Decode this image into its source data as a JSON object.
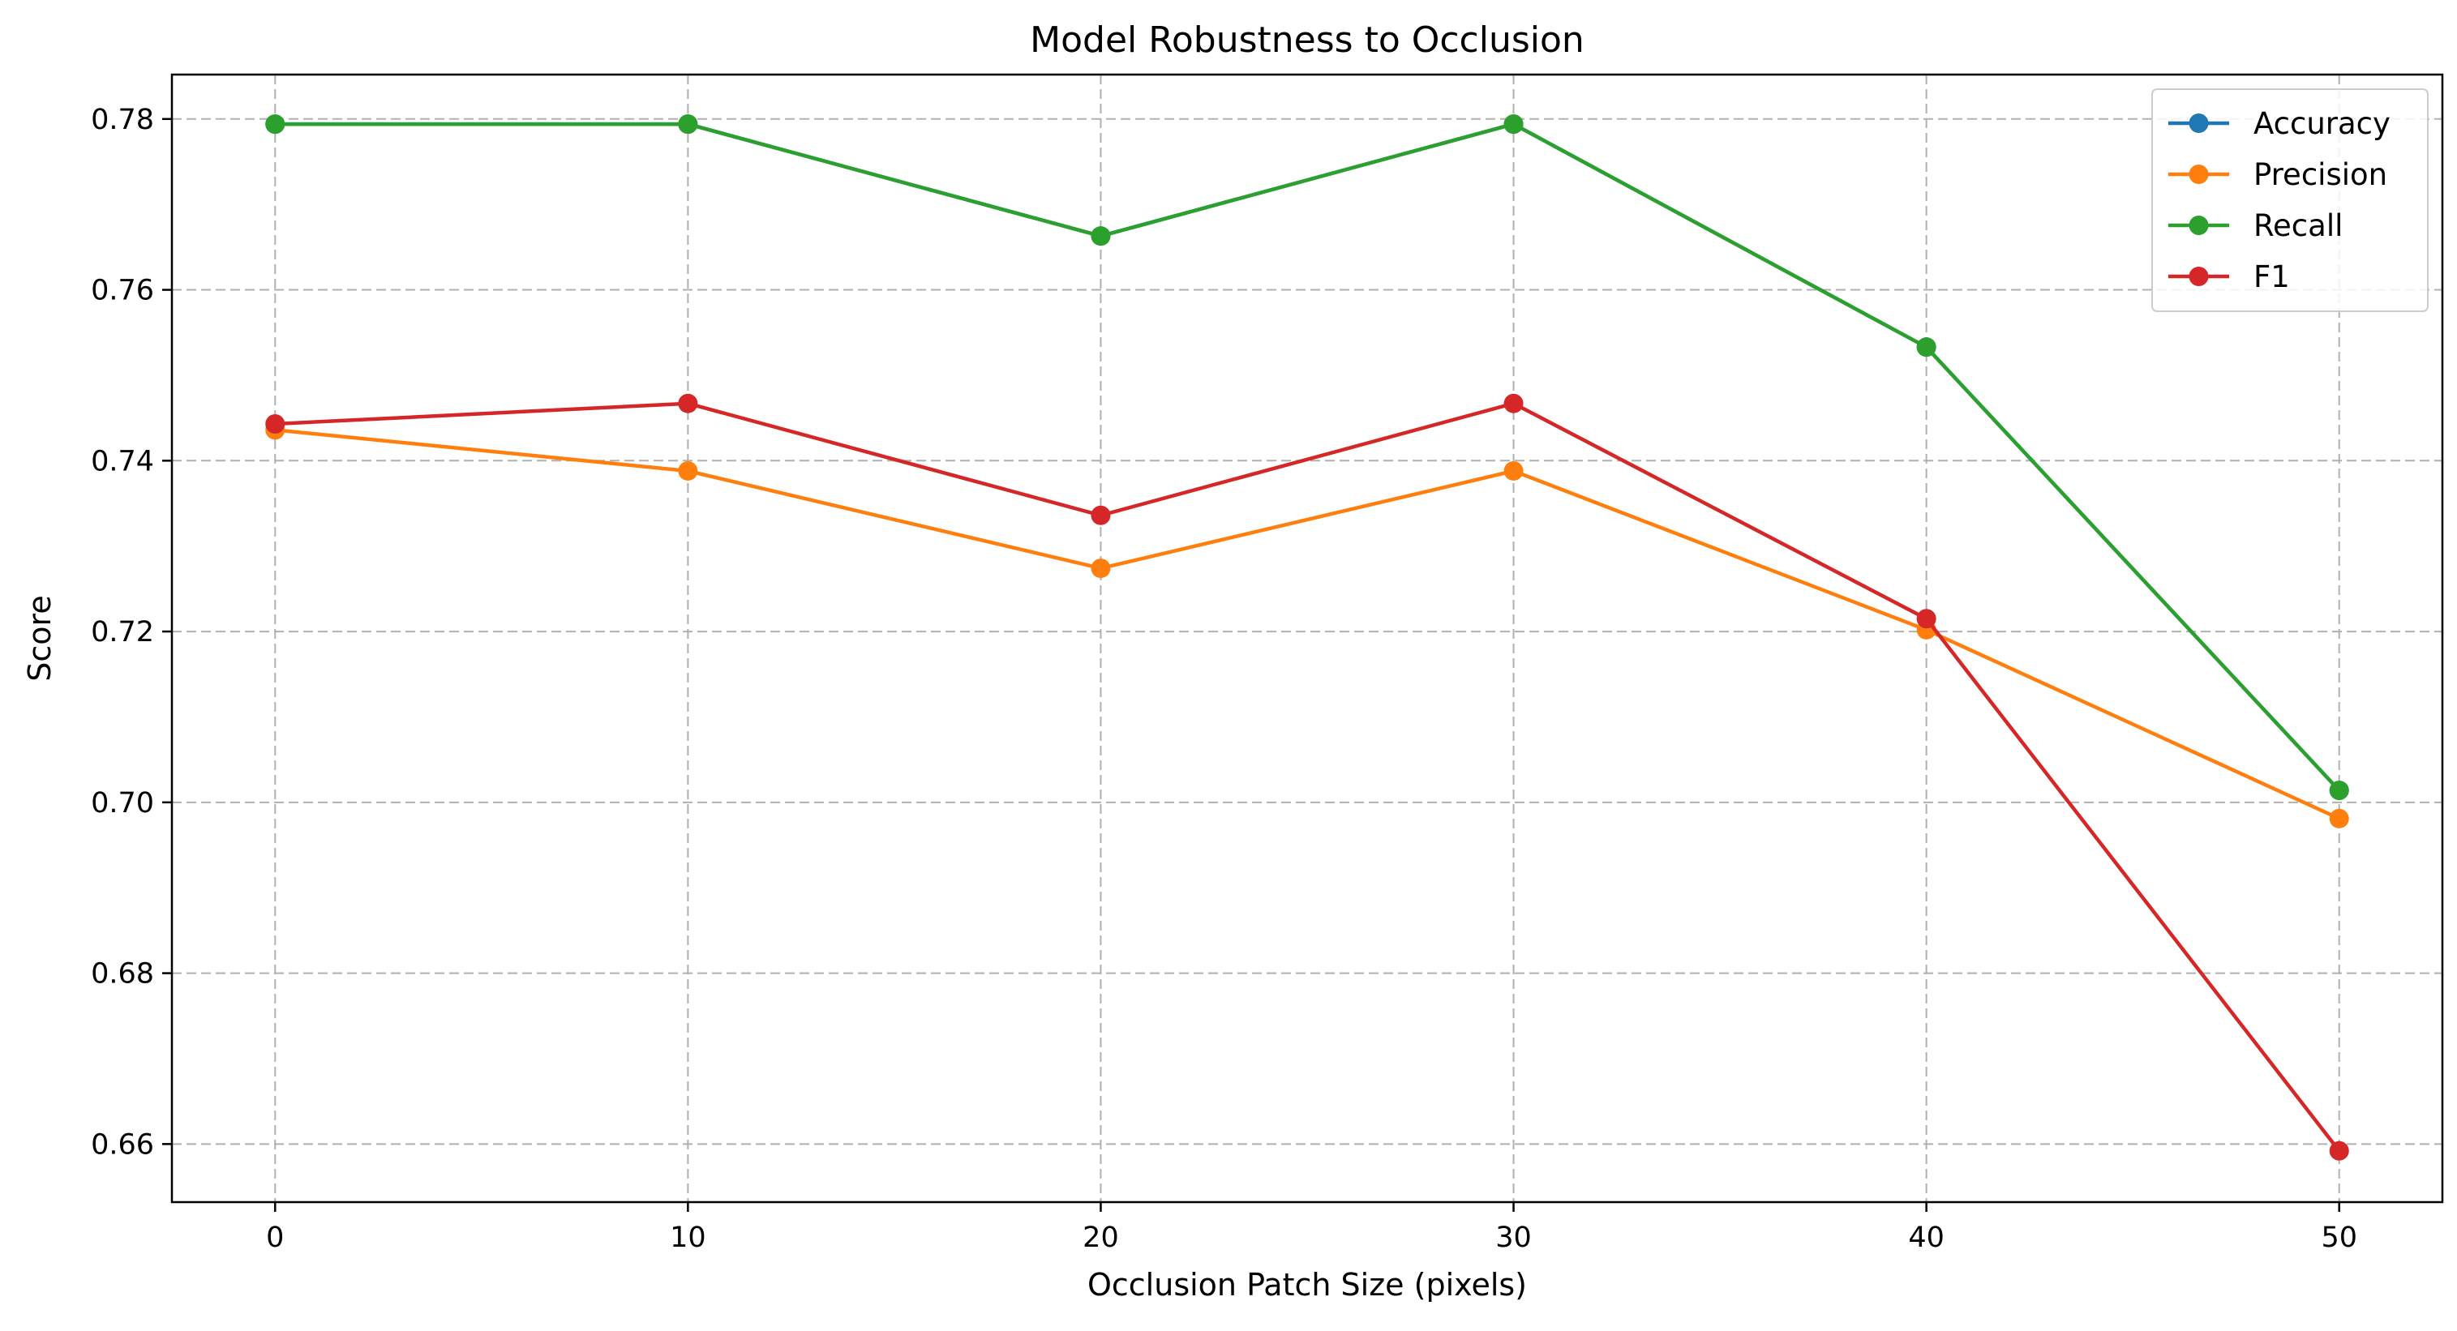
{
  "chart_data": {
    "type": "line",
    "title": "Model Robustness to Occlusion",
    "xlabel": "Occlusion Patch Size (pixels)",
    "ylabel": "Score",
    "x": [
      0,
      10,
      20,
      30,
      40,
      50
    ],
    "xlim": [
      -2.5,
      52.5
    ],
    "ylim": [
      0.6532,
      0.7852
    ],
    "xticks": [
      0,
      10,
      20,
      30,
      40,
      50
    ],
    "yticks": [
      0.66,
      0.68,
      0.7,
      0.72,
      0.74,
      0.76,
      0.78
    ],
    "xtick_labels": [
      "0",
      "10",
      "20",
      "30",
      "40",
      "50"
    ],
    "ytick_labels": [
      "0.66",
      "0.68",
      "0.70",
      "0.72",
      "0.74",
      "0.76",
      "0.78"
    ],
    "grid": true,
    "legend_position": "top-right",
    "marker": "circle",
    "series": [
      {
        "name": "Accuracy",
        "color": "#1f77b4",
        "values": [
          0.7794,
          0.7794,
          0.7663,
          0.7794,
          0.7533,
          0.7014
        ]
      },
      {
        "name": "Precision",
        "color": "#ff7f0e",
        "values": [
          0.7436,
          0.7388,
          0.7274,
          0.7388,
          0.7202,
          0.6981
        ]
      },
      {
        "name": "Recall",
        "color": "#2ca02c",
        "values": [
          0.7794,
          0.7794,
          0.7663,
          0.7794,
          0.7533,
          0.7014
        ]
      },
      {
        "name": "F1",
        "color": "#d62728",
        "values": [
          0.7443,
          0.7467,
          0.7336,
          0.7467,
          0.7215,
          0.6592
        ]
      }
    ]
  }
}
